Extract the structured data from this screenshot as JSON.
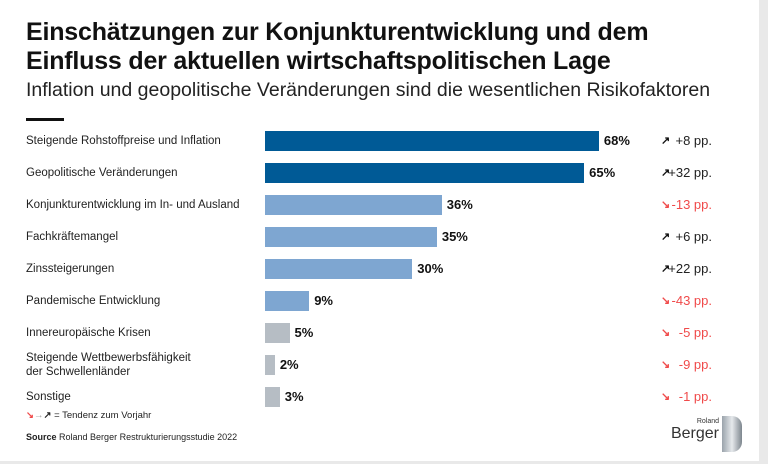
{
  "title_line1": "Einschätzungen zur Konjunkturentwicklung und dem",
  "title_line2": "Einfluss der aktuellen wirtschaftspolitischen Lage",
  "subtitle": "Inflation und geopolitische Veränderungen sind die wesentlichen Risikofaktoren",
  "colors": {
    "dark_blue": "#005a96",
    "light_blue": "#7ea6d1",
    "gray": "#b6bdc4",
    "up": "#111111",
    "down": "#f04a4a"
  },
  "chart_data": {
    "type": "bar",
    "orientation": "horizontal",
    "unit": "%",
    "categories": [
      "Steigende Rohstoffpreise und Inflation",
      "Geopolitische Veränderungen",
      "Konjunkturentwicklung im In- und Ausland",
      "Fachkräftemangel",
      "Zinssteigerungen",
      "Pandemische Entwicklung",
      "Innereuropäische Krisen",
      "Steigende Wettbewerbsfähigkeit der Schwellenländer",
      "Sonstige"
    ],
    "category_lines": [
      [
        "Steigende Rohstoffpreise und Inflation"
      ],
      [
        "Geopolitische Veränderungen"
      ],
      [
        "Konjunkturentwicklung im In- und Ausland"
      ],
      [
        "Fachkräftemangel"
      ],
      [
        "Zinssteigerungen"
      ],
      [
        "Pandemische Entwicklung"
      ],
      [
        "Innereuropäische Krisen"
      ],
      [
        "Steigende Wettbewerbsfähigkeit",
        "der Schwellenländer"
      ],
      [
        "Sonstige"
      ]
    ],
    "values": [
      68,
      65,
      36,
      35,
      30,
      9,
      5,
      2,
      3
    ],
    "value_labels": [
      "68%",
      "65%",
      "36%",
      "35%",
      "30%",
      "9%",
      "5%",
      "2%",
      "3%"
    ],
    "bar_colors": [
      "dark_blue",
      "dark_blue",
      "light_blue",
      "light_blue",
      "light_blue",
      "light_blue",
      "gray",
      "gray",
      "gray"
    ],
    "change_labels": [
      "+8 pp.",
      "+32 pp.",
      "-13 pp.",
      "+6 pp.",
      "+22 pp.",
      "-43 pp.",
      "-5 pp.",
      "-9 pp.",
      "-1 pp."
    ],
    "change_direction": [
      "up",
      "up",
      "down",
      "up",
      "up",
      "down",
      "down",
      "down",
      "down"
    ],
    "xlim": [
      0,
      100
    ]
  },
  "legend": {
    "text": "= Tendenz zum Vorjahr"
  },
  "source": {
    "label": "Source",
    "text": "Roland Berger Restrukturierungsstudie 2022"
  },
  "logo": {
    "line1": "Roland",
    "line2": "Berger"
  }
}
